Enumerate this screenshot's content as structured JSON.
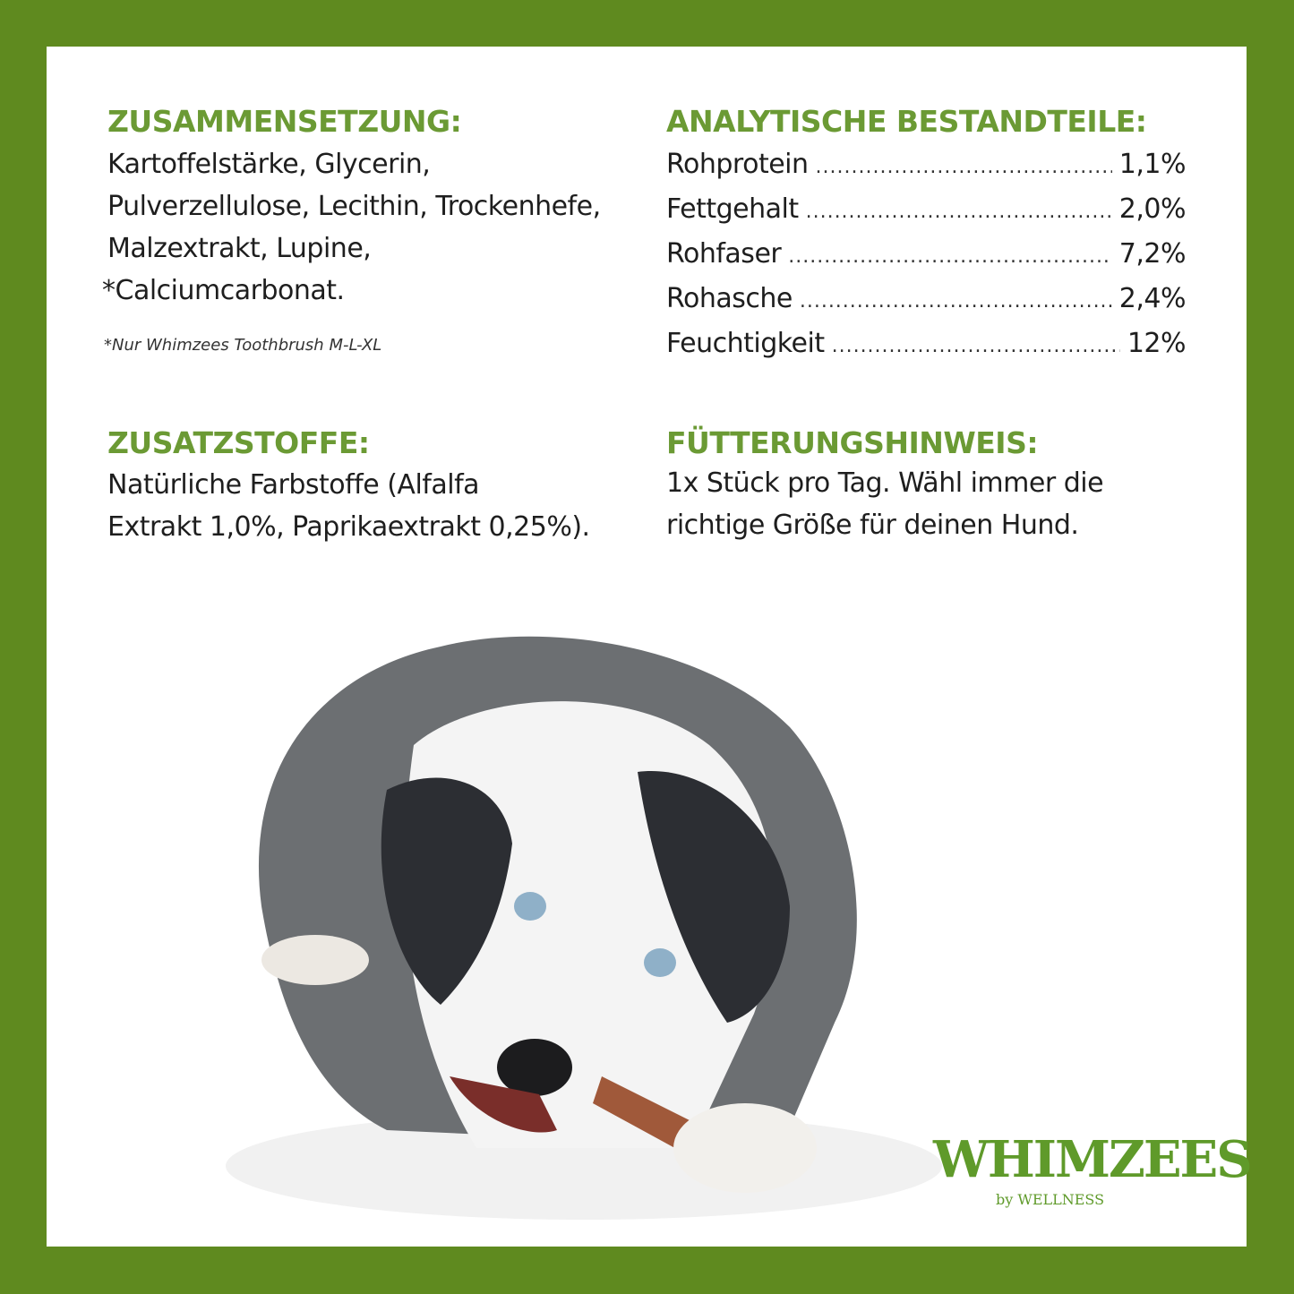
{
  "composition": {
    "title": "ZUSAMMENSETZUNG:",
    "lines": [
      "Kartoffelstärke, Glycerin,",
      "Pulverzellulose, Lecithin, Trockenhefe,",
      "Malzextrakt, Lupine,",
      "*Calciumcarbonat."
    ],
    "footnote": "*Nur Whimzees Toothbrush M-L-XL"
  },
  "analytical": {
    "title": "ANALYTISCHE BESTANDTEILE:",
    "rows": [
      {
        "label": "Rohprotein",
        "value": "1,1%"
      },
      {
        "label": "Fettgehalt",
        "value": "2,0%"
      },
      {
        "label": "Rohfaser",
        "value": "7,2%"
      },
      {
        "label": "Rohasche",
        "value": "2,4%"
      },
      {
        "label": "Feuchtigkeit",
        "value": "12%"
      }
    ]
  },
  "additives": {
    "title": "ZUSATZSTOFFE:",
    "lines": [
      "Natürliche Farbstoffe (Alfalfa",
      "Extrakt 1,0%, Paprikaextrakt 0,25%)."
    ]
  },
  "feeding": {
    "title": "FÜTTERUNGSHINWEIS:",
    "lines": [
      "1x Stück pro Tag. Wähl immer die",
      "richtige Größe für deinen Hund."
    ]
  },
  "logo": {
    "brand": "WHIMZEES",
    "sub": "by WELLNESS"
  },
  "colors": {
    "frame": "#5f8a1f",
    "heading": "#6b9a34",
    "text": "#1e1e1e"
  }
}
